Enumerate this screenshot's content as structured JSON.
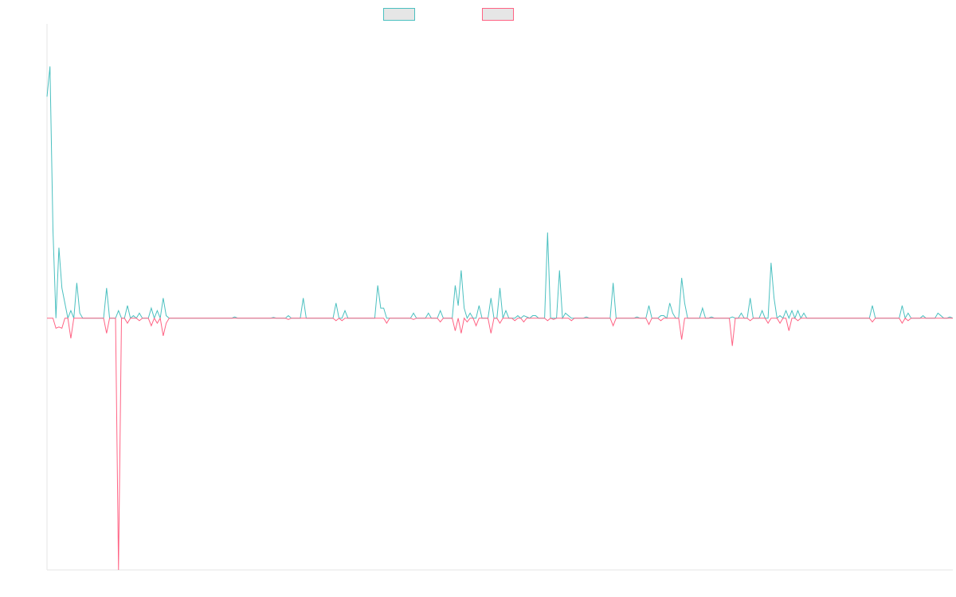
{
  "chart_data": {
    "type": "line",
    "grid": false,
    "legend_position": "top-center",
    "ylim": [
      -100,
      115
    ],
    "x_count": 305,
    "series": [
      {
        "color": "#4bc0c0",
        "legend_fill": "#e6e6e6",
        "values": [
          [
            0,
            88
          ],
          [
            1,
            100
          ],
          [
            2,
            35
          ],
          [
            3,
            0
          ],
          [
            4,
            28
          ],
          [
            5,
            12
          ],
          [
            6,
            6
          ],
          [
            7,
            0
          ],
          [
            8,
            3
          ],
          [
            9,
            0
          ],
          [
            10,
            14
          ],
          [
            11,
            2
          ],
          [
            12,
            0
          ],
          [
            19,
            0
          ],
          [
            20,
            12
          ],
          [
            21,
            0
          ],
          [
            23,
            0
          ],
          [
            24,
            3
          ],
          [
            25,
            0
          ],
          [
            26,
            0
          ],
          [
            27,
            5
          ],
          [
            28,
            0
          ],
          [
            29,
            1
          ],
          [
            30,
            0
          ],
          [
            31,
            2
          ],
          [
            32,
            0
          ],
          [
            34,
            0
          ],
          [
            35,
            4
          ],
          [
            36,
            0
          ],
          [
            37,
            3
          ],
          [
            38,
            0
          ],
          [
            39,
            8
          ],
          [
            40,
            1
          ],
          [
            41,
            0
          ],
          [
            62,
            0
          ],
          [
            63,
            0.5
          ],
          [
            64,
            0
          ],
          [
            75,
            0
          ],
          [
            76,
            0.3
          ],
          [
            77,
            0
          ],
          [
            80,
            0
          ],
          [
            81,
            1
          ],
          [
            82,
            0
          ],
          [
            85,
            0
          ],
          [
            86,
            8
          ],
          [
            87,
            0
          ],
          [
            96,
            0
          ],
          [
            97,
            6
          ],
          [
            98,
            0
          ],
          [
            99,
            0
          ],
          [
            100,
            3
          ],
          [
            101,
            0
          ],
          [
            110,
            0
          ],
          [
            111,
            13
          ],
          [
            112,
            4
          ],
          [
            113,
            4
          ],
          [
            114,
            0
          ],
          [
            122,
            0
          ],
          [
            123,
            2
          ],
          [
            124,
            0
          ],
          [
            127,
            0
          ],
          [
            128,
            2
          ],
          [
            129,
            0
          ],
          [
            131,
            0
          ],
          [
            132,
            3
          ],
          [
            133,
            0
          ],
          [
            136,
            0
          ],
          [
            137,
            13
          ],
          [
            138,
            5
          ],
          [
            139,
            19
          ],
          [
            140,
            4
          ],
          [
            141,
            0
          ],
          [
            142,
            2
          ],
          [
            143,
            0
          ],
          [
            144,
            0
          ],
          [
            145,
            5
          ],
          [
            146,
            0
          ],
          [
            148,
            0
          ],
          [
            149,
            8
          ],
          [
            150,
            0
          ],
          [
            151,
            0
          ],
          [
            152,
            12
          ],
          [
            153,
            0
          ],
          [
            154,
            3
          ],
          [
            155,
            0
          ],
          [
            157,
            0
          ],
          [
            158,
            1
          ],
          [
            159,
            0
          ],
          [
            160,
            1
          ],
          [
            161,
            0.5
          ],
          [
            162,
            0
          ],
          [
            163,
            1
          ],
          [
            164,
            1
          ],
          [
            165,
            0
          ],
          [
            167,
            0
          ],
          [
            168,
            34
          ],
          [
            169,
            0
          ],
          [
            171,
            0
          ],
          [
            172,
            19
          ],
          [
            173,
            0
          ],
          [
            174,
            2
          ],
          [
            175,
            1
          ],
          [
            176,
            0
          ],
          [
            180,
            0
          ],
          [
            181,
            0.5
          ],
          [
            182,
            0
          ],
          [
            189,
            0
          ],
          [
            190,
            14
          ],
          [
            191,
            0
          ],
          [
            197,
            0
          ],
          [
            198,
            0.5
          ],
          [
            199,
            0
          ],
          [
            201,
            0
          ],
          [
            202,
            5
          ],
          [
            203,
            0
          ],
          [
            205,
            0
          ],
          [
            206,
            1
          ],
          [
            207,
            1
          ],
          [
            208,
            0
          ],
          [
            209,
            6
          ],
          [
            210,
            2
          ],
          [
            211,
            0
          ],
          [
            212,
            0
          ],
          [
            213,
            16
          ],
          [
            214,
            6
          ],
          [
            215,
            0
          ],
          [
            219,
            0
          ],
          [
            220,
            4
          ],
          [
            221,
            0
          ],
          [
            222,
            0
          ],
          [
            223,
            0.5
          ],
          [
            224,
            0
          ],
          [
            229,
            0
          ],
          [
            230,
            0.5
          ],
          [
            231,
            0
          ],
          [
            232,
            0
          ],
          [
            233,
            2
          ],
          [
            234,
            0
          ],
          [
            235,
            0
          ],
          [
            236,
            8
          ],
          [
            237,
            0
          ],
          [
            239,
            0
          ],
          [
            240,
            3
          ],
          [
            241,
            0
          ],
          [
            242,
            0
          ],
          [
            243,
            22
          ],
          [
            244,
            8
          ],
          [
            245,
            0
          ],
          [
            246,
            1
          ],
          [
            247,
            0
          ],
          [
            248,
            3
          ],
          [
            249,
            0
          ],
          [
            250,
            3
          ],
          [
            251,
            0
          ],
          [
            252,
            3
          ],
          [
            253,
            0
          ],
          [
            254,
            2
          ],
          [
            255,
            0
          ],
          [
            276,
            0
          ],
          [
            277,
            5
          ],
          [
            278,
            0
          ],
          [
            286,
            0
          ],
          [
            287,
            5
          ],
          [
            288,
            0
          ],
          [
            289,
            2
          ],
          [
            290,
            0
          ],
          [
            293,
            0
          ],
          [
            294,
            1
          ],
          [
            295,
            0
          ],
          [
            298,
            0
          ],
          [
            299,
            2
          ],
          [
            300,
            1
          ],
          [
            301,
            0
          ],
          [
            302,
            0
          ],
          [
            303,
            0.5
          ],
          [
            304,
            0
          ]
        ]
      },
      {
        "color": "#ff6384",
        "legend_fill": "#e6e6e6",
        "values": [
          [
            0,
            0
          ],
          [
            1,
            0
          ],
          [
            2,
            0
          ],
          [
            3,
            -4
          ],
          [
            4,
            -3.5
          ],
          [
            5,
            -4
          ],
          [
            6,
            0
          ],
          [
            7,
            0
          ],
          [
            8,
            -8
          ],
          [
            9,
            0
          ],
          [
            10,
            0
          ],
          [
            19,
            0
          ],
          [
            20,
            -6
          ],
          [
            21,
            0
          ],
          [
            23,
            0
          ],
          [
            24,
            -100
          ],
          [
            25,
            0
          ],
          [
            26,
            0
          ],
          [
            27,
            -2
          ],
          [
            28,
            0
          ],
          [
            29,
            0
          ],
          [
            30,
            0
          ],
          [
            31,
            -1
          ],
          [
            32,
            0
          ],
          [
            34,
            0
          ],
          [
            35,
            -3
          ],
          [
            36,
            0
          ],
          [
            37,
            -2
          ],
          [
            38,
            0
          ],
          [
            39,
            -7
          ],
          [
            40,
            -2
          ],
          [
            41,
            0
          ],
          [
            80,
            0
          ],
          [
            81,
            -0.5
          ],
          [
            82,
            0
          ],
          [
            96,
            0
          ],
          [
            97,
            -1
          ],
          [
            98,
            0
          ],
          [
            99,
            -1
          ],
          [
            100,
            0
          ],
          [
            113,
            0
          ],
          [
            114,
            -2
          ],
          [
            115,
            0
          ],
          [
            122,
            0
          ],
          [
            123,
            -0.5
          ],
          [
            124,
            0
          ],
          [
            131,
            0
          ],
          [
            132,
            -1.5
          ],
          [
            133,
            0
          ],
          [
            136,
            0
          ],
          [
            137,
            -5
          ],
          [
            138,
            0
          ],
          [
            139,
            -6
          ],
          [
            140,
            0
          ],
          [
            141,
            -1.5
          ],
          [
            142,
            0
          ],
          [
            143,
            0
          ],
          [
            144,
            -3
          ],
          [
            145,
            0
          ],
          [
            148,
            0
          ],
          [
            149,
            -6
          ],
          [
            150,
            0
          ],
          [
            151,
            0
          ],
          [
            152,
            -2
          ],
          [
            153,
            0
          ],
          [
            156,
            0
          ],
          [
            157,
            -1
          ],
          [
            158,
            0
          ],
          [
            159,
            0
          ],
          [
            160,
            -1.5
          ],
          [
            161,
            0
          ],
          [
            167,
            0
          ],
          [
            168,
            -1
          ],
          [
            169,
            0
          ],
          [
            170,
            -0.5
          ],
          [
            171,
            0
          ],
          [
            175,
            0
          ],
          [
            176,
            -1
          ],
          [
            177,
            0
          ],
          [
            189,
            0
          ],
          [
            190,
            -3
          ],
          [
            191,
            0
          ],
          [
            201,
            0
          ],
          [
            202,
            -2.5
          ],
          [
            203,
            0
          ],
          [
            205,
            0
          ],
          [
            206,
            -1
          ],
          [
            207,
            0
          ],
          [
            212,
            0
          ],
          [
            213,
            -8.5
          ],
          [
            214,
            0
          ],
          [
            229,
            0
          ],
          [
            230,
            -11
          ],
          [
            231,
            0
          ],
          [
            235,
            0
          ],
          [
            236,
            -1
          ],
          [
            237,
            0
          ],
          [
            241,
            0
          ],
          [
            242,
            -2
          ],
          [
            243,
            0
          ],
          [
            245,
            0
          ],
          [
            246,
            -2
          ],
          [
            247,
            0
          ],
          [
            248,
            0
          ],
          [
            249,
            -5
          ],
          [
            250,
            0
          ],
          [
            251,
            0
          ],
          [
            252,
            -1
          ],
          [
            253,
            0
          ],
          [
            276,
            0
          ],
          [
            277,
            -1.5
          ],
          [
            278,
            0
          ],
          [
            286,
            0
          ],
          [
            287,
            -2
          ],
          [
            288,
            0
          ],
          [
            289,
            -1
          ],
          [
            290,
            0
          ],
          [
            304,
            0
          ]
        ]
      }
    ]
  }
}
